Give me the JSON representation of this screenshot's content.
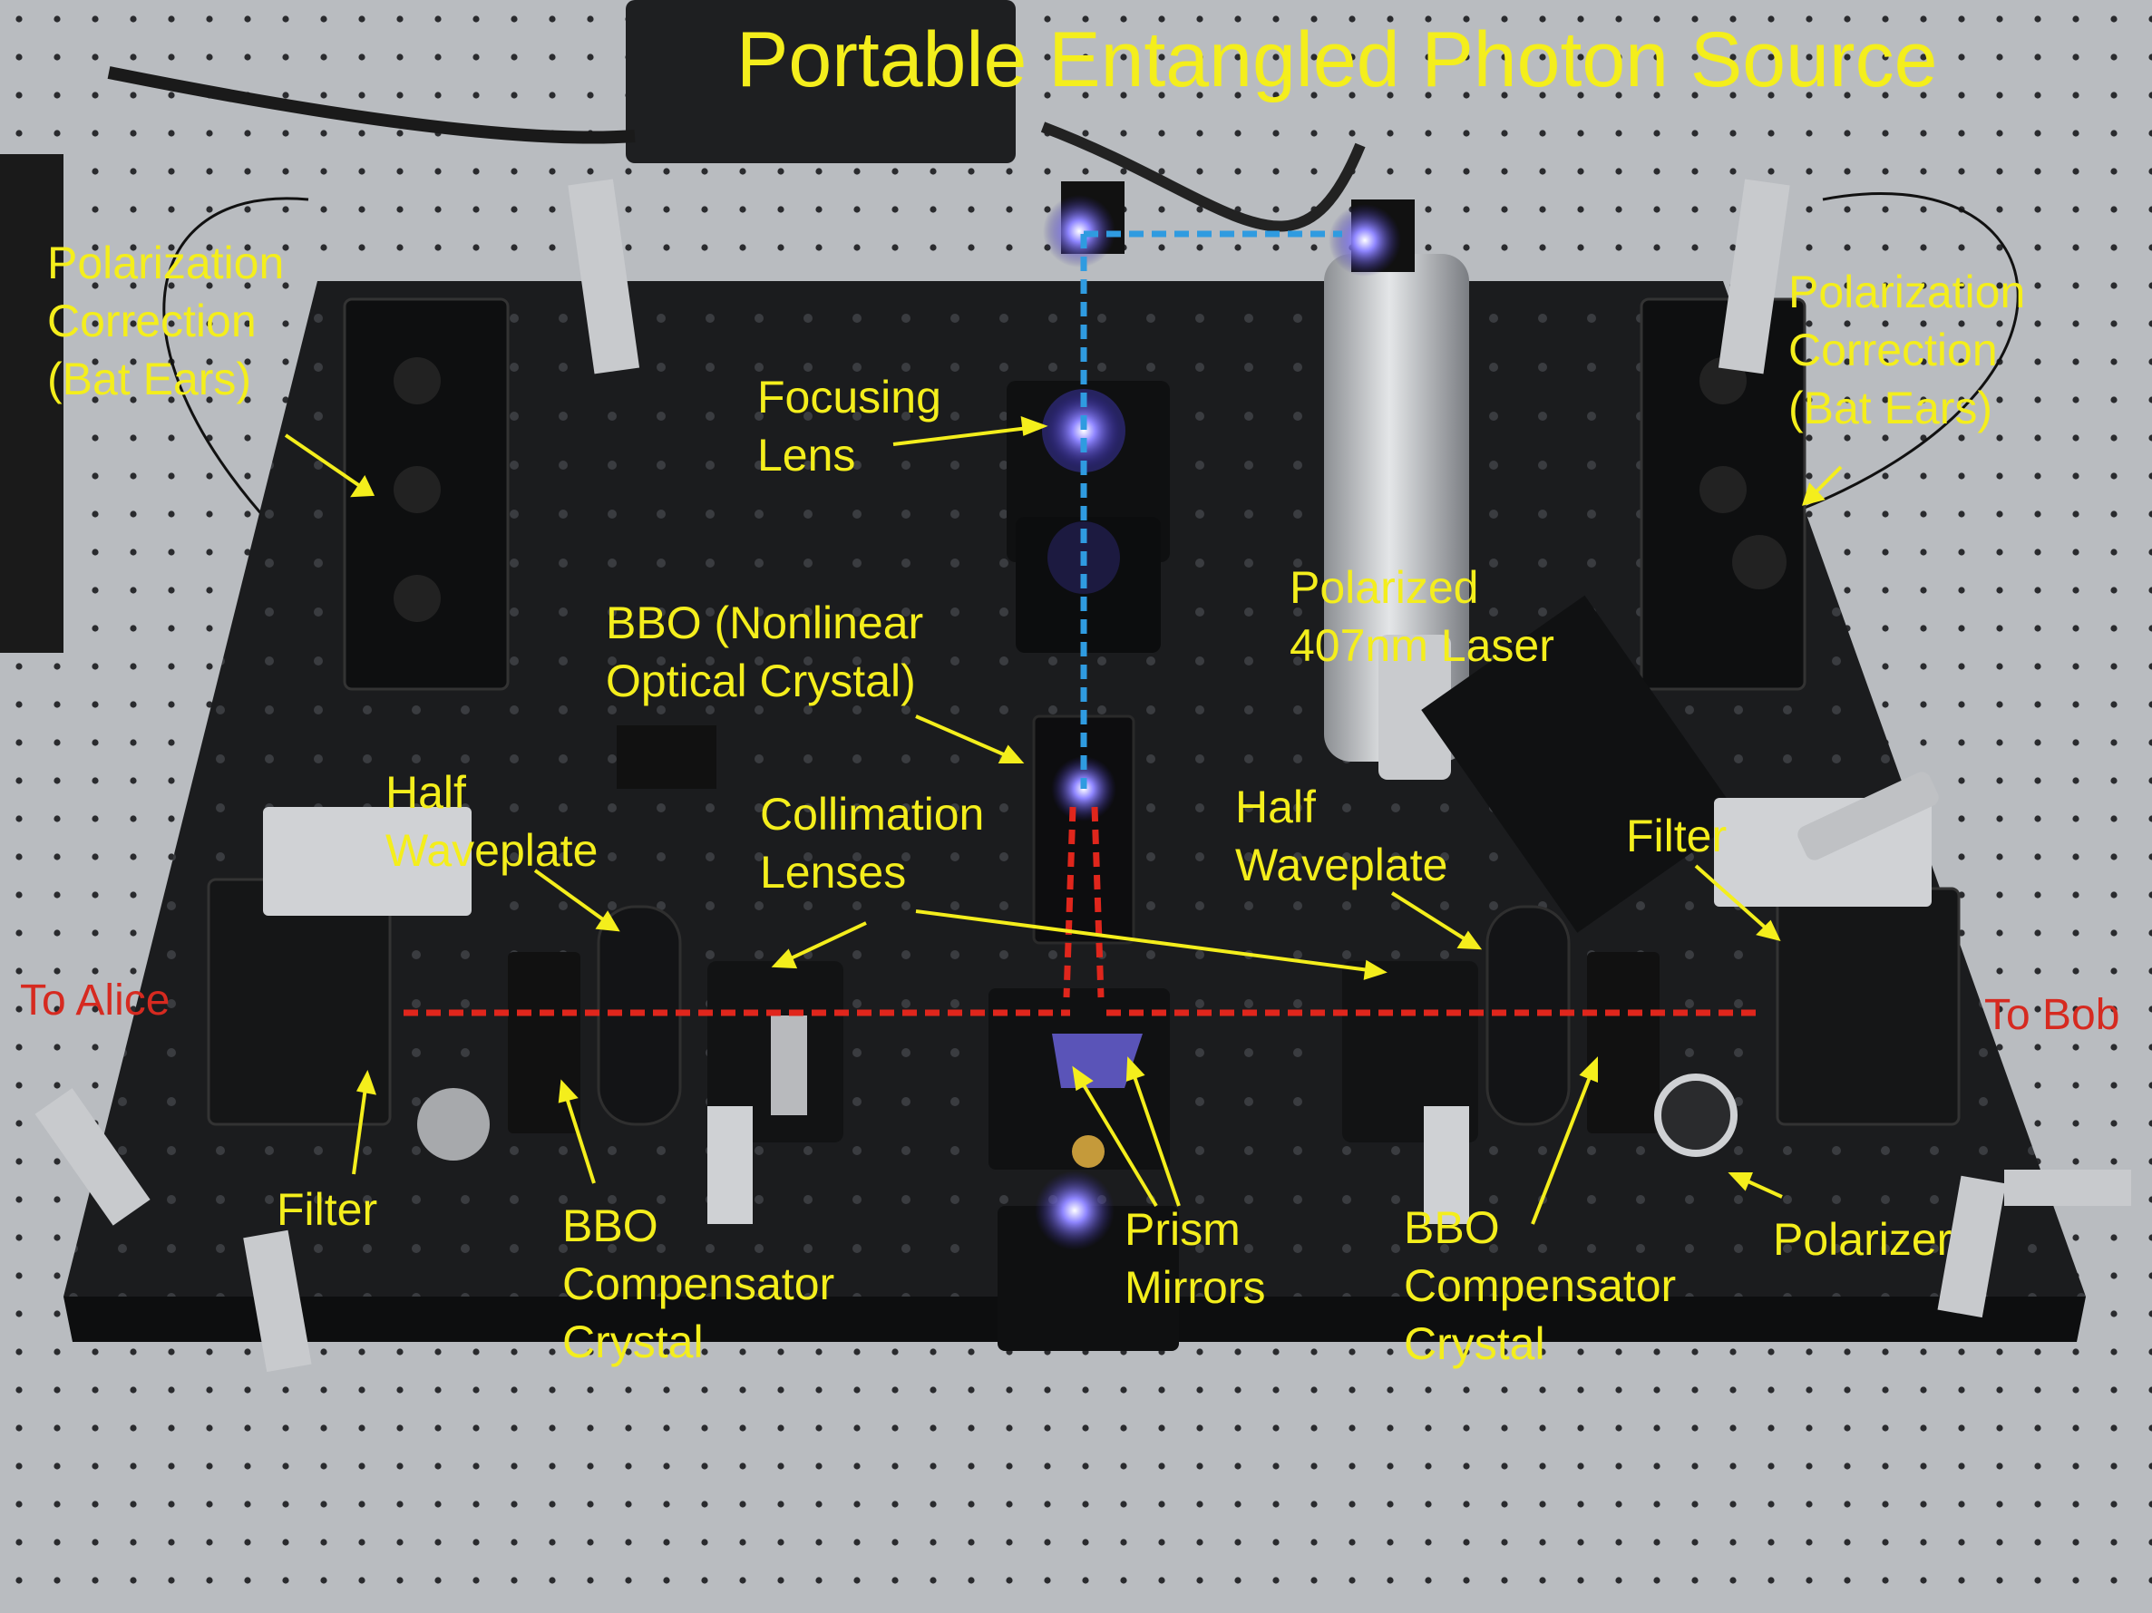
{
  "title": "Portable Entangled Photon Source",
  "labels": {
    "pol_left": "Polarization\nCorrection\n(Bat Ears)",
    "pol_right": "Polarization\nCorrection\n(Bat Ears)",
    "focusing": "Focusing\nLens",
    "bbo_main": "BBO (Nonlinear\nOptical Crystal)",
    "laser": "Polarized\n407nm Laser",
    "half_left": "Half\nWaveplate",
    "collimation": "Collimation\nLenses",
    "half_right": "Half\nWaveplate",
    "filter_right": "Filter",
    "to_alice": "To Alice",
    "to_bob": "To Bob",
    "filter_left": "Filter",
    "bbo_comp_left": "BBO\nCompensator\nCrystal",
    "prism": "Prism\nMirrors",
    "bbo_comp_right": "BBO\nCompensator\nCrystal",
    "polarizer": "Polarizer"
  },
  "colors": {
    "label": "#f4ee1c",
    "port_label": "#d62a20",
    "pump_beam": "#2f9be0",
    "entangled_beam": "#e0261c",
    "breadboard": "#1b1c1e",
    "table": "#b9bcc0"
  }
}
